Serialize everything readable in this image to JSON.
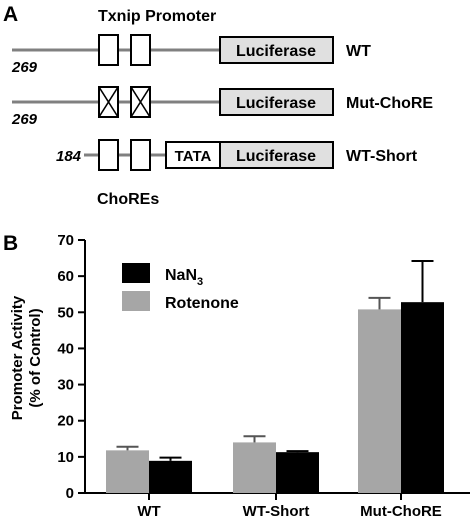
{
  "panel_a": {
    "label": "A",
    "title": "Txnip Promoter",
    "choRE_label": "ChoREs",
    "constructs": [
      {
        "position": "269",
        "name": "WT",
        "reporter": "Luciferase",
        "mutated": false,
        "tata": false
      },
      {
        "position": "269",
        "name": "Mut-ChoRE",
        "reporter": "Luciferase",
        "mutated": true,
        "tata": false
      },
      {
        "position": "184",
        "name": "WT-Short",
        "reporter": "Luciferase",
        "mutated": false,
        "tata": true,
        "tata_label": "TATA"
      }
    ]
  },
  "panel_b": {
    "label": "B",
    "chart_data": {
      "type": "bar",
      "ylabel_line1": "Promoter Activity",
      "ylabel_line2": "(% of Control)",
      "xlabel": "",
      "ylim": [
        0,
        70
      ],
      "yticks": [
        0,
        10,
        20,
        30,
        40,
        50,
        60,
        70
      ],
      "categories": [
        "WT",
        "WT-Short",
        "Mut-ChoRE"
      ],
      "series": [
        {
          "name": "Rotenone",
          "color": "#a6a6a6",
          "values": [
            11.8,
            14.0,
            50.8
          ],
          "errors": [
            1.0,
            1.7,
            3.2
          ]
        },
        {
          "name": "NaN3",
          "color": "#000000",
          "values": [
            8.9,
            11.3,
            52.8
          ],
          "errors": [
            0.9,
            0.3,
            11.4
          ]
        }
      ],
      "legend": {
        "position": "top-left",
        "order": [
          "NaN3",
          "Rotenone"
        ],
        "nan3_main": "NaN",
        "nan3_sub": "3",
        "rotenone": "Rotenone"
      }
    }
  }
}
